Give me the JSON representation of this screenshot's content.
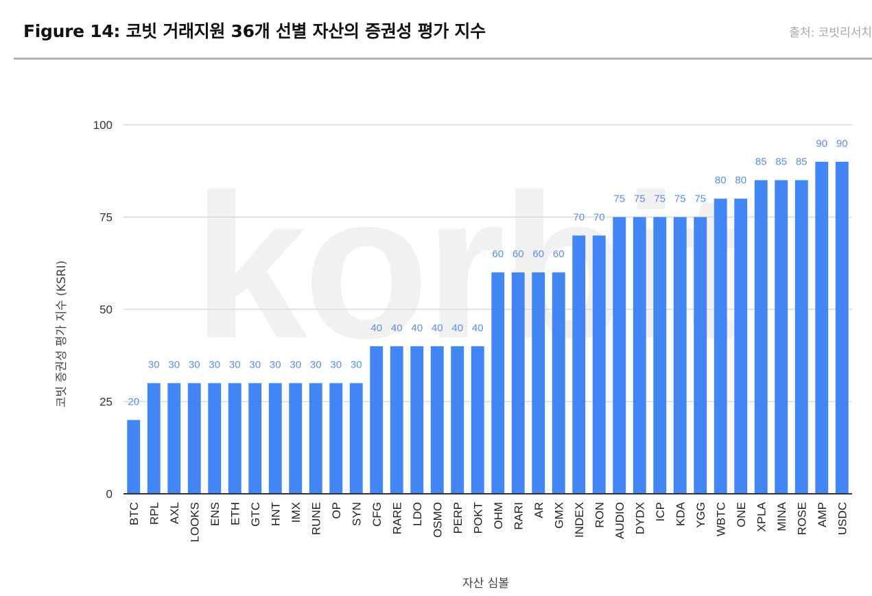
{
  "header": {
    "title": "Figure 14: 코빗 거래지원 36개 선별 자산의 증권성 평가 지수",
    "source": "출처: 코빗리서치"
  },
  "watermark": "korbit",
  "colors": {
    "bar": "#4285f4",
    "label": "#5b8ee6",
    "grid": "#d9d9d9",
    "axis": "#333333"
  },
  "chart_data": {
    "type": "bar",
    "title": "",
    "xlabel": "자산 심볼",
    "ylabel": "코빗 증권성 평가 지수 (KSRI)",
    "ylim": [
      0,
      100
    ],
    "yticks": [
      0,
      25,
      50,
      75,
      100
    ],
    "grid": true,
    "legend": "none",
    "categories": [
      "BTC",
      "RPL",
      "AXL",
      "LOOKS",
      "ENS",
      "ETH",
      "GTC",
      "HNT",
      "IMX",
      "RUNE",
      "OP",
      "SYN",
      "CFG",
      "RARE",
      "LDO",
      "OSMO",
      "PERP",
      "POKT",
      "OHM",
      "RARI",
      "AR",
      "GMX",
      "INDEX",
      "RON",
      "AUDIO",
      "DYDX",
      "ICP",
      "KDA",
      "YGG",
      "WBTC",
      "ONE",
      "XPLA",
      "MINA",
      "ROSE",
      "AMP",
      "USDC"
    ],
    "values": [
      20,
      30,
      30,
      30,
      30,
      30,
      30,
      30,
      30,
      30,
      30,
      30,
      40,
      40,
      40,
      40,
      40,
      40,
      60,
      60,
      60,
      60,
      70,
      70,
      75,
      75,
      75,
      75,
      75,
      80,
      80,
      85,
      85,
      85,
      90,
      90
    ],
    "data_labels": true
  }
}
